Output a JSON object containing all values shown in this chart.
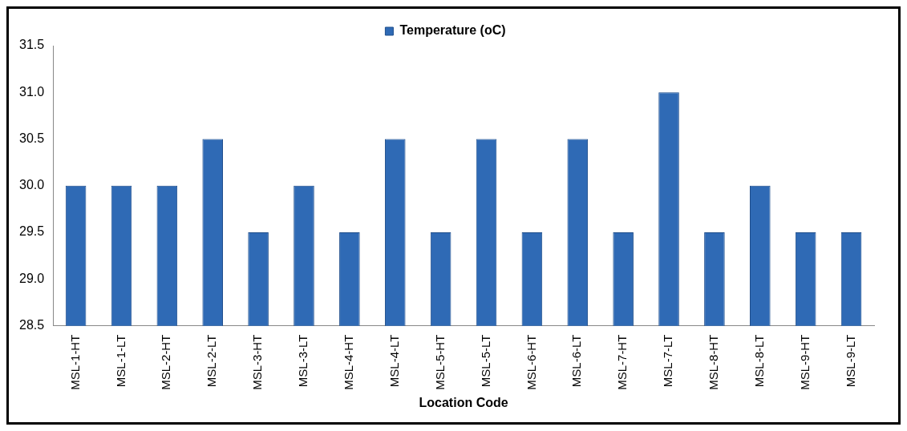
{
  "chart_data": {
    "type": "bar",
    "xlabel": "Location Code",
    "categories": [
      "MSL-1-HT",
      "MSL-1-LT",
      "MSL-2-HT",
      "MSL-2-LT",
      "MSL-3-HT",
      "MSL-3-LT",
      "MSL-4-HT",
      "MSL-4-LT",
      "MSL-5-HT",
      "MSL-5-LT",
      "MSL-6-HT",
      "MSL-6-LT",
      "MSL-7-HT",
      "MSL-7-LT",
      "MSL-8-HT",
      "MSL-8-LT",
      "MSL-9-HT",
      "MSL-9-LT"
    ],
    "series": [
      {
        "name": "Temperature (oC)",
        "color": "#2f6ab5",
        "values": [
          30,
          30,
          30,
          30.5,
          29.5,
          30,
          29.5,
          30.5,
          29.5,
          30.5,
          29.5,
          30.5,
          29.5,
          31,
          29.5,
          30,
          29.5,
          29.5
        ]
      }
    ],
    "ylim": [
      28.5,
      31.5
    ],
    "yticks": [
      28.5,
      {
        "value": 29,
        "label": "29.0"
      },
      29.5,
      {
        "value": 30,
        "label": "30.0"
      },
      30.5,
      {
        "value": 31,
        "label": "31.0"
      },
      31.5
    ],
    "grid": false,
    "legend": "top"
  }
}
